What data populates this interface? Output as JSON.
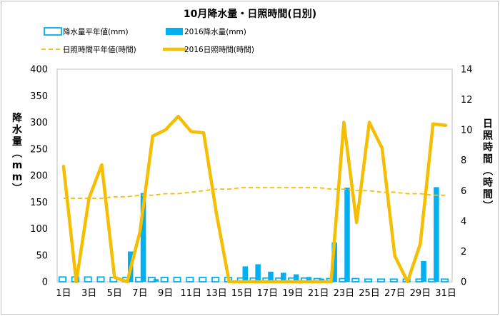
{
  "chart_data": {
    "type": "bar",
    "title": "10月降水量・日照時間(日別)",
    "ylabel": "降水量(mm)",
    "y2label": "日照時間(時間)",
    "ylim": [
      0,
      400
    ],
    "y2lim": [
      0,
      14
    ],
    "yticks": [
      "0",
      "50",
      "100",
      "150",
      "200",
      "250",
      "300",
      "350",
      "400"
    ],
    "y2ticks": [
      "0",
      "2",
      "4",
      "6",
      "8",
      "10",
      "12",
      "14"
    ],
    "xticks": [
      "1日",
      "3日",
      "5日",
      "7日",
      "9日",
      "11日",
      "13日",
      "15日",
      "17日",
      "19日",
      "21日",
      "23日",
      "25日",
      "27日",
      "29日",
      "31日"
    ],
    "grid": false,
    "legend_position": "top",
    "days": [
      1,
      2,
      3,
      4,
      5,
      6,
      7,
      8,
      9,
      10,
      11,
      12,
      13,
      14,
      15,
      16,
      17,
      18,
      19,
      20,
      21,
      22,
      23,
      24,
      25,
      26,
      27,
      28,
      29,
      30,
      31
    ],
    "series": [
      {
        "name": "降水量平年値(mm)",
        "axis": "left",
        "kind": "bar-outline",
        "color": "#00b0f0",
        "values": [
          9,
          9,
          9,
          9,
          8,
          8,
          8,
          8,
          8,
          8,
          8,
          8,
          8,
          8,
          7,
          7,
          7,
          7,
          7,
          7,
          6,
          6,
          6,
          6,
          5,
          5,
          5,
          5,
          5,
          5,
          5
        ]
      },
      {
        "name": "2016降水量(mm)",
        "axis": "left",
        "kind": "bar",
        "color": "#00b0f0",
        "values": [
          0,
          0,
          0,
          0,
          0,
          57,
          167,
          5,
          0,
          0,
          0,
          0,
          0,
          0,
          29,
          33,
          19,
          17,
          14,
          9,
          6,
          74,
          177,
          0,
          0,
          0,
          0,
          0,
          39,
          178,
          0
        ]
      },
      {
        "name": "日照時間平年値(時間)",
        "axis": "right",
        "kind": "dashed-line",
        "color": "#f6be00",
        "values": [
          5.5,
          5.5,
          5.5,
          5.5,
          5.6,
          5.6,
          5.7,
          5.7,
          5.8,
          5.8,
          5.9,
          6.0,
          6.1,
          6.1,
          6.2,
          6.2,
          6.2,
          6.2,
          6.2,
          6.2,
          6.2,
          6.1,
          6.1,
          6.0,
          6.0,
          5.9,
          5.9,
          5.8,
          5.8,
          5.7,
          5.7
        ]
      },
      {
        "name": "2016日照時間(時間)",
        "axis": "right",
        "kind": "line",
        "color": "#f6be00",
        "values": [
          7.6,
          0.0,
          5.5,
          7.7,
          0.3,
          0.0,
          3.3,
          9.6,
          10.0,
          10.9,
          9.9,
          9.8,
          4.5,
          0.0,
          0.0,
          0.0,
          0.0,
          0.0,
          0.0,
          0.0,
          0.0,
          0.0,
          10.5,
          3.9,
          10.5,
          8.8,
          1.7,
          0.0,
          2.5,
          10.4,
          10.3
        ]
      }
    ]
  }
}
